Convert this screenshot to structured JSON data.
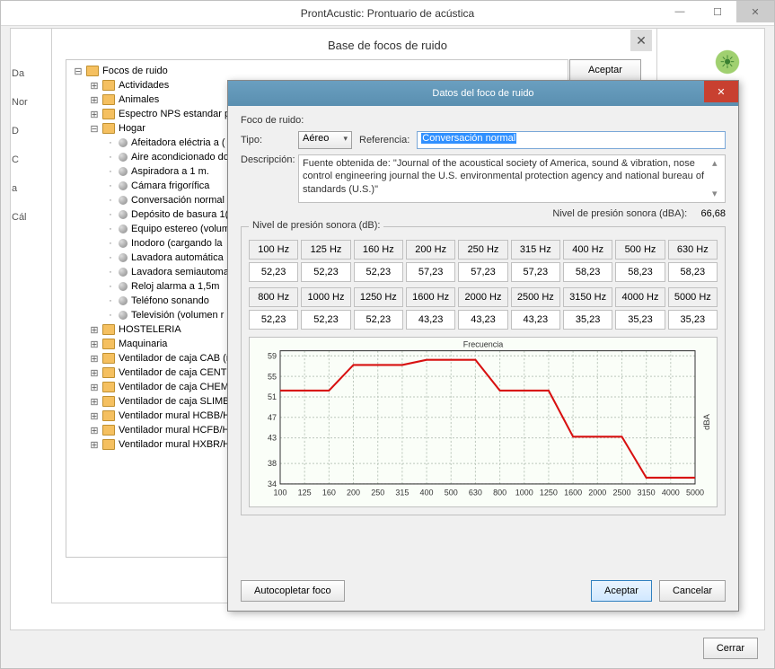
{
  "window": {
    "title": "ProntAcustic: Prontuario de acústica",
    "sub": "Base de focos de ruido",
    "aceptar": "Aceptar",
    "cerrar": "Cerrar"
  },
  "sideTabs": [
    "Da",
    "Nor",
    "D",
    "C",
    "a",
    "Cál"
  ],
  "tree": {
    "root": "Focos de ruido",
    "folders": [
      "Actividades",
      "Animales",
      "Espectro NPS estandar pa",
      "Hogar"
    ],
    "hogar": [
      "Afeitadora eléctria a (",
      "Aire acondicionado do",
      "Aspiradora a 1 m.",
      "Cámara frigorífica",
      "Conversación normal",
      "Depósito de basura 1(",
      "Equipo estereo (volum",
      "Inodoro (cargando la",
      "Lavadora automática",
      "Lavadora semiautoma",
      "Reloj alarma a 1,5m",
      "Teléfono sonando",
      "Televisión  (volumen r"
    ],
    "rest": [
      "HOSTELERIA",
      "Maquinaria",
      "Ventilador de caja CAB (m",
      "Ventilador de caja CENTR",
      "Ventilador de caja CHEMI",
      "Ventilador de caja SLIMBC",
      "Ventilador mural HCBB/HC",
      "Ventilador mural HCFB/HC",
      "Ventilador mural HXBR/HX"
    ]
  },
  "dialog": {
    "title": "Datos del foco de ruido",
    "focoLabel": "Foco de ruido:",
    "tipoLabel": "Tipo:",
    "tipoValue": "Aéreo",
    "refLabel": "Referencia:",
    "refValue": "Conversación normal",
    "descLabel": "Descripción:",
    "descValue": "Fuente obtenida de: \"Journal of the acoustical society of America, sound & vibration, nose control engineering journal the U.S. environmental protection agency and national bureau of standards (U.S.)\"",
    "nivelLabel": "Nivel de presión sonora (dBA):",
    "nivelValue": "66,68",
    "splLabel": "Nivel de presión sonora (dB):",
    "autoc": "Autocopletar foco",
    "aceptar": "Aceptar",
    "cancelar": "Cancelar"
  },
  "freq": {
    "hdr1": [
      "100 Hz",
      "125 Hz",
      "160 Hz",
      "200 Hz",
      "250 Hz",
      "315 Hz",
      "400 Hz",
      "500 Hz",
      "630 Hz"
    ],
    "val1": [
      "52,23",
      "52,23",
      "52,23",
      "57,23",
      "57,23",
      "57,23",
      "58,23",
      "58,23",
      "58,23"
    ],
    "hdr2": [
      "800 Hz",
      "1000 Hz",
      "1250 Hz",
      "1600 Hz",
      "2000 Hz",
      "2500 Hz",
      "3150 Hz",
      "4000 Hz",
      "5000 Hz"
    ],
    "val2": [
      "52,23",
      "52,23",
      "52,23",
      "43,23",
      "43,23",
      "43,23",
      "35,23",
      "35,23",
      "35,23"
    ]
  },
  "chart": {
    "title": "Frecuencia",
    "ylabel": "dBA",
    "xticks": [
      "100",
      "125",
      "160",
      "200",
      "250",
      "315",
      "400",
      "500",
      "630",
      "800",
      "1000",
      "1250",
      "1600",
      "2000",
      "2500",
      "3150",
      "4000",
      "5000"
    ],
    "yticks": [
      34,
      38,
      43,
      47,
      51,
      55,
      59
    ],
    "ylim": [
      34,
      60
    ],
    "values": [
      52.23,
      52.23,
      52.23,
      57.23,
      57.23,
      57.23,
      58.23,
      58.23,
      58.23,
      52.23,
      52.23,
      52.23,
      43.23,
      43.23,
      43.23,
      35.23,
      35.23,
      35.23
    ],
    "line_color": "#d81010",
    "grid_color": "#bcc8bc",
    "bg": "#fafef8",
    "line_width": 2
  }
}
